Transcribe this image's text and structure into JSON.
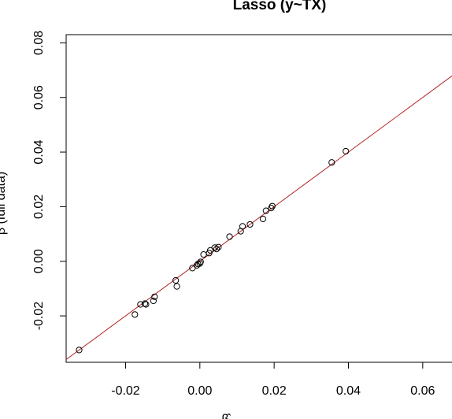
{
  "chart_data": {
    "type": "scatter",
    "title": "Lasso (y~TX)",
    "xlabel": "β̂",
    "ylabel": "β̂ (full data)",
    "xlim": [
      -0.036,
      0.07
    ],
    "ylim": [
      -0.037,
      0.083
    ],
    "x_ticks": [
      -0.02,
      0.0,
      0.02,
      0.04,
      0.06
    ],
    "x_tick_labels": [
      "-0.02",
      "0.00",
      "0.02",
      "0.04",
      "0.06"
    ],
    "y_ticks": [
      -0.02,
      0.0,
      0.02,
      0.04,
      0.06,
      0.08
    ],
    "y_tick_labels": [
      "-0.02",
      "0.00",
      "0.02",
      "0.04",
      "0.06",
      "0.08"
    ],
    "reference_line": {
      "intercept": 0,
      "slope": 1,
      "color": "#b22222"
    },
    "point_color": "#000000",
    "grid": false,
    "points": [
      {
        "x": -0.0325,
        "y": -0.0325
      },
      {
        "x": -0.0175,
        "y": -0.0195
      },
      {
        "x": -0.016,
        "y": -0.0158
      },
      {
        "x": -0.0148,
        "y": -0.0155
      },
      {
        "x": -0.0145,
        "y": -0.0158
      },
      {
        "x": -0.0125,
        "y": -0.0145
      },
      {
        "x": -0.0122,
        "y": -0.013
      },
      {
        "x": -0.0065,
        "y": -0.007
      },
      {
        "x": -0.0062,
        "y": -0.0092
      },
      {
        "x": -0.002,
        "y": -0.0025
      },
      {
        "x": -0.0008,
        "y": -0.0015
      },
      {
        "x": -0.0005,
        "y": -0.001
      },
      {
        "x": 0.0,
        "y": -0.0008
      },
      {
        "x": 0.0002,
        "y": -0.0002
      },
      {
        "x": 0.001,
        "y": 0.0025
      },
      {
        "x": 0.0025,
        "y": 0.003
      },
      {
        "x": 0.0028,
        "y": 0.004
      },
      {
        "x": 0.004,
        "y": 0.005
      },
      {
        "x": 0.0045,
        "y": 0.0045
      },
      {
        "x": 0.005,
        "y": 0.0052
      },
      {
        "x": 0.008,
        "y": 0.009
      },
      {
        "x": 0.011,
        "y": 0.011
      },
      {
        "x": 0.0115,
        "y": 0.0128
      },
      {
        "x": 0.0135,
        "y": 0.0135
      },
      {
        "x": 0.017,
        "y": 0.0155
      },
      {
        "x": 0.0178,
        "y": 0.0185
      },
      {
        "x": 0.0192,
        "y": 0.0195
      },
      {
        "x": 0.0195,
        "y": 0.0202
      },
      {
        "x": 0.0355,
        "y": 0.0362
      },
      {
        "x": 0.0393,
        "y": 0.0403
      }
    ]
  }
}
